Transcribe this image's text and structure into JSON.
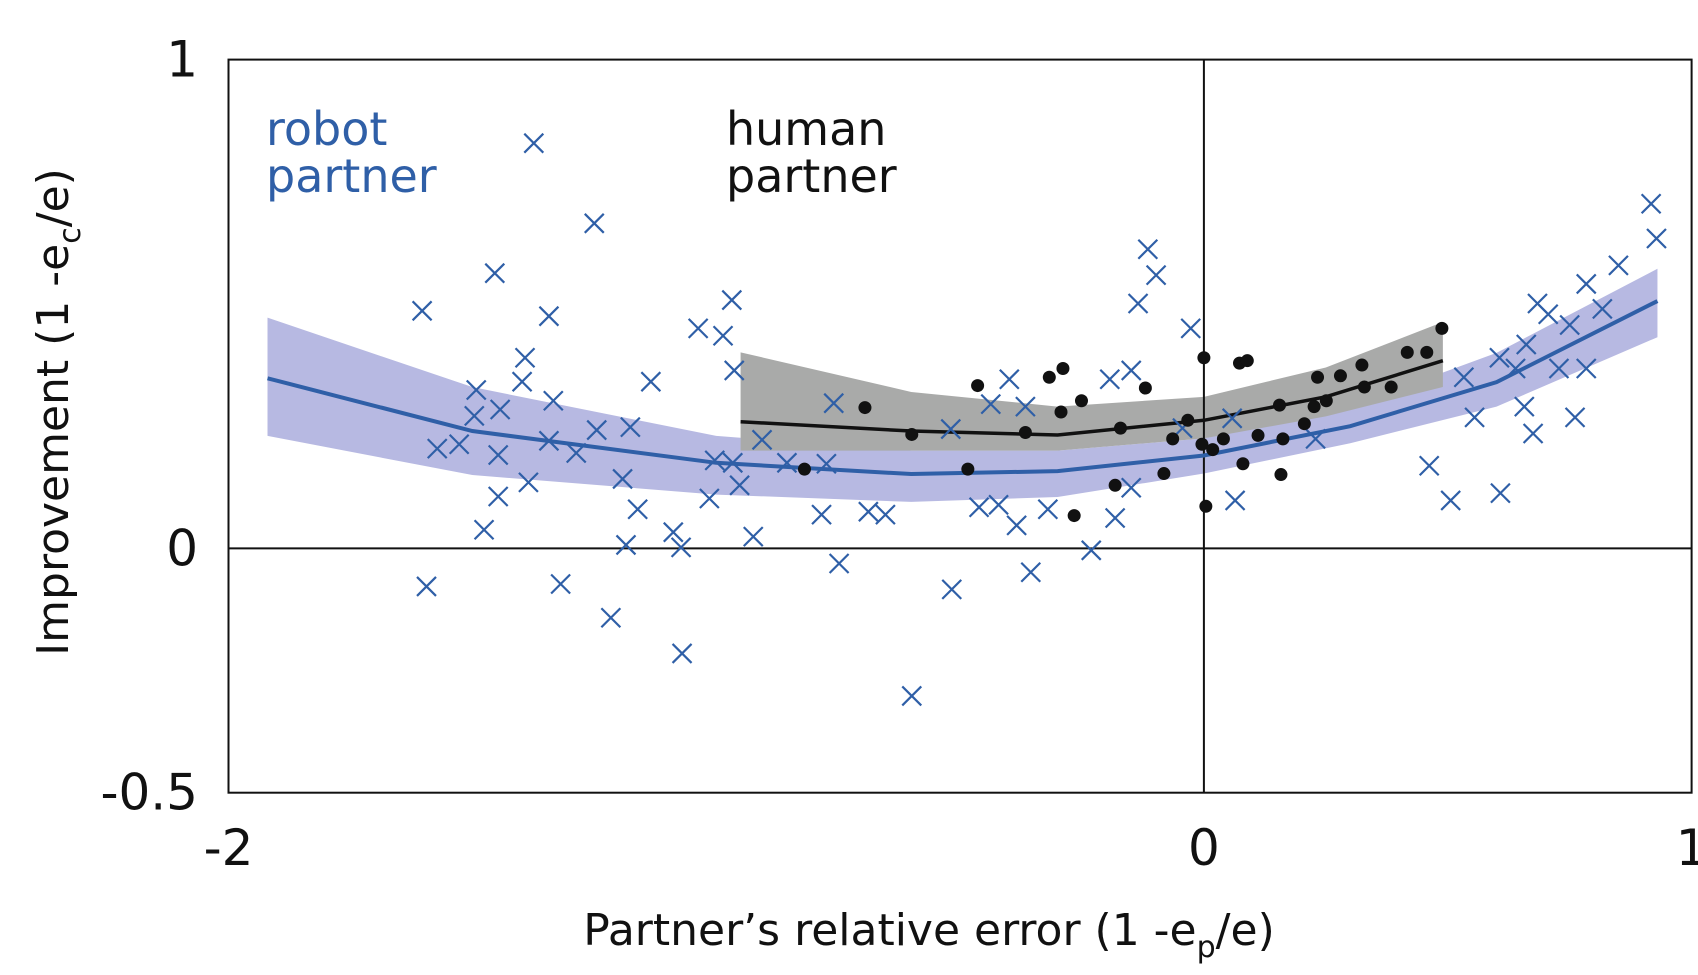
{
  "chart_data": {
    "type": "scatter",
    "xlim": [
      -2,
      1
    ],
    "ylim": [
      -0.5,
      1
    ],
    "xticks": [
      -2,
      0,
      1
    ],
    "yticks": [
      -0.5,
      0,
      1
    ],
    "x_label": [
      "Partner’s relative error (1 -e",
      "p",
      "/e)"
    ],
    "y_label": [
      "Improvement (1 -e",
      "c",
      "/e)"
    ],
    "series": [
      {
        "name": "robot partner",
        "color": "#2f5fa7",
        "marker": "x",
        "x": [
          -1.374,
          -1.25,
          -1.454,
          -1.603,
          -1.343,
          -1.392,
          -1.492,
          -1.134,
          -1.398,
          -1.334,
          -1.443,
          -1.496,
          -1.245,
          -1.176,
          -1.572,
          -1.527,
          -1.447,
          -1.343,
          -1.287,
          -1.385,
          -1.447,
          -1.192,
          -1.161,
          -1.476,
          -1.185,
          -1.088,
          -1.072,
          -1.594,
          -1.319,
          -1.216,
          -1.07,
          -0.968,
          -1.037,
          -0.986,
          -0.963,
          -1.003,
          -0.966,
          -0.952,
          -1.014,
          -0.906,
          -0.924,
          -0.855,
          -0.759,
          -0.774,
          -0.784,
          -0.688,
          -0.653,
          -0.748,
          -0.599,
          -0.517,
          -0.519,
          -0.437,
          -0.461,
          -0.421,
          -0.399,
          -0.366,
          -0.384,
          -0.355,
          -0.32,
          -0.231,
          -0.193,
          -0.149,
          -0.115,
          -0.098,
          -0.135,
          -0.027,
          -0.044,
          -0.149,
          -0.182,
          0.064,
          0.058,
          0.229,
          0.462,
          0.506,
          0.608,
          0.533,
          0.555,
          0.606,
          0.661,
          0.657,
          0.675,
          0.706,
          0.728,
          0.75,
          0.761,
          0.784,
          0.817,
          0.85,
          0.917,
          0.928,
          0.684,
          0.639,
          0.784
        ],
        "values": [
          0.829,
          0.665,
          0.563,
          0.486,
          0.475,
          0.39,
          0.324,
          0.341,
          0.341,
          0.302,
          0.284,
          0.271,
          0.242,
          0.248,
          0.204,
          0.213,
          0.191,
          0.22,
          0.195,
          0.135,
          0.106,
          0.142,
          0.08,
          0.038,
          0.007,
          0.033,
          0.002,
          -0.078,
          -0.073,
          -0.142,
          -0.215,
          0.508,
          0.45,
          0.435,
          0.364,
          0.18,
          0.175,
          0.129,
          0.102,
          0.222,
          0.024,
          0.175,
          0.297,
          0.173,
          0.069,
          0.075,
          0.069,
          -0.031,
          -0.302,
          -0.084,
          0.244,
          0.295,
          0.084,
          0.089,
          0.346,
          0.29,
          0.047,
          -0.049,
          0.08,
          -0.004,
          0.346,
          0.364,
          0.612,
          0.559,
          0.501,
          0.45,
          0.246,
          0.124,
          0.062,
          0.098,
          0.266,
          0.224,
          0.169,
          0.098,
          0.113,
          0.35,
          0.268,
          0.39,
          0.417,
          0.29,
          0.235,
          0.479,
          0.368,
          0.457,
          0.268,
          0.541,
          0.49,
          0.579,
          0.705,
          0.634,
          0.501,
          0.368,
          0.368
        ]
      },
      {
        "name": "human partner",
        "color": "#111111",
        "marker": "o",
        "x": [
          -0.695,
          -0.819,
          -0.599,
          -0.484,
          -0.464,
          -0.366,
          -0.317,
          -0.289,
          -0.293,
          -0.251,
          -0.266,
          -0.182,
          -0.171,
          -0.12,
          -0.082,
          -0.064,
          -0.033,
          0,
          0.004,
          -0.004,
          0.018,
          0.04,
          0.073,
          0.089,
          0.08,
          0.111,
          0.155,
          0.162,
          0.158,
          0.206,
          0.226,
          0.233,
          0.251,
          0.28,
          0.324,
          0.329,
          0.384,
          0.417,
          0.457,
          0.488
        ],
        "values": [
          0.288,
          0.162,
          0.233,
          0.162,
          0.333,
          0.237,
          0.35,
          0.368,
          0.279,
          0.302,
          0.067,
          0.129,
          0.246,
          0.328,
          0.153,
          0.224,
          0.262,
          0.39,
          0.086,
          0.213,
          0.202,
          0.224,
          0.379,
          0.384,
          0.173,
          0.231,
          0.293,
          0.224,
          0.151,
          0.255,
          0.29,
          0.35,
          0.302,
          0.353,
          0.375,
          0.33,
          0.33,
          0.401,
          0.401,
          0.45
        ]
      }
    ],
    "fits": [
      {
        "color": "#2f5fa7",
        "band_color": "#b7b9e2",
        "x": [
          -1.92,
          -1.5,
          -1,
          -0.6,
          -0.3,
          0,
          0.3,
          0.6,
          0.93
        ],
        "values": [
          0.348,
          0.24,
          0.175,
          0.152,
          0.158,
          0.19,
          0.25,
          0.34,
          0.506
        ],
        "upper": [
          0.472,
          0.33,
          0.23,
          0.2,
          0.2,
          0.225,
          0.29,
          0.4,
          0.572
        ],
        "lower": [
          0.23,
          0.15,
          0.11,
          0.095,
          0.105,
          0.153,
          0.215,
          0.29,
          0.432
        ]
      },
      {
        "color": "#111111",
        "band_color": "#a9aaa9",
        "x": [
          -0.95,
          -0.6,
          -0.3,
          0,
          0.25,
          0.49
        ],
        "values": [
          0.259,
          0.24,
          0.232,
          0.262,
          0.31,
          0.384
        ],
        "upper": [
          0.401,
          0.32,
          0.29,
          0.31,
          0.37,
          0.463
        ],
        "lower": [
          0.2,
          0.2,
          0.2,
          0.225,
          0.27,
          0.33
        ]
      }
    ]
  }
}
